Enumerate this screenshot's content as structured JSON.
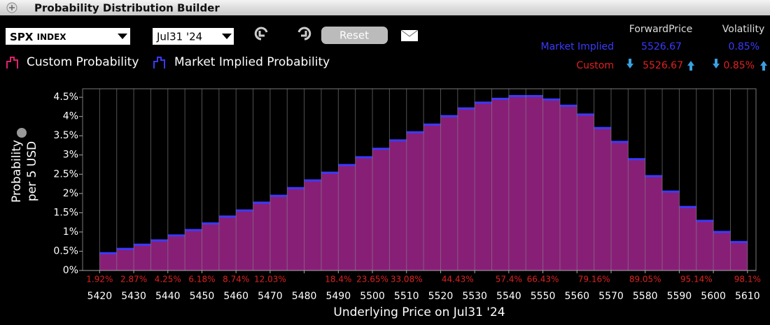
{
  "header": {
    "title": "Probability Distribution Builder"
  },
  "controls": {
    "symbol": "SPX",
    "symbol_type": "INDEX",
    "expiry": "Jul31 '24",
    "reset": "Reset"
  },
  "summary": {
    "headers": [
      "ForwardPrice",
      "Volatility"
    ],
    "rows": [
      {
        "label": "Market Implied",
        "forward": "5526.67",
        "volatility": "0.85%"
      },
      {
        "label": "Custom",
        "forward": "5526.67",
        "volatility": "0.85%"
      }
    ]
  },
  "chart_data": {
    "type": "histogram",
    "xlabel": "Underlying Price on Jul31 '24",
    "ylabel": [
      "Probability",
      "per 5 USD"
    ],
    "bins": [
      5420,
      5425,
      5430,
      5435,
      5440,
      5445,
      5450,
      5455,
      5460,
      5465,
      5470,
      5475,
      5480,
      5485,
      5490,
      5495,
      5500,
      5505,
      5510,
      5515,
      5520,
      5525,
      5530,
      5535,
      5540,
      5545,
      5550,
      5555,
      5560,
      5565,
      5570,
      5575,
      5580,
      5585,
      5590,
      5595,
      5600,
      5605,
      5610
    ],
    "series": [
      {
        "name": "Custom Probability",
        "color": "#e0206e",
        "values": [
          0.45,
          0.56,
          0.67,
          0.78,
          0.91,
          1.05,
          1.22,
          1.4,
          1.56,
          1.76,
          1.94,
          2.14,
          2.34,
          2.54,
          2.74,
          2.94,
          3.16,
          3.38,
          3.59,
          3.79,
          4.01,
          4.21,
          4.36,
          4.46,
          4.53,
          4.53,
          4.44,
          4.28,
          4.05,
          3.7,
          3.34,
          2.89,
          2.45,
          2.05,
          1.65,
          1.29,
          1.0,
          0.74
        ]
      },
      {
        "name": "Market Implied Probability",
        "color": "#3a3aff",
        "values": [
          0.45,
          0.56,
          0.67,
          0.78,
          0.91,
          1.05,
          1.22,
          1.4,
          1.56,
          1.76,
          1.94,
          2.14,
          2.34,
          2.54,
          2.74,
          2.94,
          3.16,
          3.38,
          3.59,
          3.79,
          4.01,
          4.21,
          4.36,
          4.46,
          4.53,
          4.53,
          4.44,
          4.28,
          4.05,
          3.7,
          3.34,
          2.89,
          2.45,
          2.05,
          1.65,
          1.29,
          1.0,
          0.74
        ]
      }
    ],
    "cumulative": {
      "x": [
        5420,
        5430,
        5440,
        5450,
        5460,
        5470,
        5490,
        5500,
        5510,
        5525,
        5540,
        5550,
        5565,
        5580,
        5595,
        5610
      ],
      "values": [
        1.92,
        2.87,
        4.25,
        6.18,
        8.74,
        12.03,
        18.4,
        23.65,
        33.08,
        44.43,
        57.4,
        66.43,
        79.16,
        89.05,
        95.14,
        98.1
      ],
      "value_labels": [
        "1.92%",
        "2.87%",
        "4.25%",
        "6.18%",
        "8.74%",
        "12.03%",
        "18.4%",
        "23.65%",
        "33.08%",
        "44.43%",
        "57.4%",
        "66.43%",
        "79.16%",
        "89.05%",
        "95.14%",
        "98.1%"
      ],
      "color": "#e02020"
    },
    "xlim": [
      5415,
      5612.5
    ],
    "ylim": [
      0,
      4.72
    ],
    "xticks": [
      5420,
      5430,
      5440,
      5450,
      5460,
      5470,
      5480,
      5490,
      5500,
      5510,
      5520,
      5530,
      5540,
      5550,
      5560,
      5570,
      5580,
      5590,
      5600,
      5610
    ],
    "yticks": [
      {
        "value": 0,
        "label": "0%"
      },
      {
        "value": 0.5,
        "label": "0.5%"
      },
      {
        "value": 1,
        "label": "1%"
      },
      {
        "value": 1.5,
        "label": "1.5%"
      },
      {
        "value": 2,
        "label": "2%"
      },
      {
        "value": 2.5,
        "label": "2.5%"
      },
      {
        "value": 3,
        "label": "3%"
      },
      {
        "value": 3.5,
        "label": "3.5%"
      },
      {
        "value": 4,
        "label": "4%"
      },
      {
        "value": 4.5,
        "label": "4.5%"
      }
    ],
    "grid": true
  }
}
